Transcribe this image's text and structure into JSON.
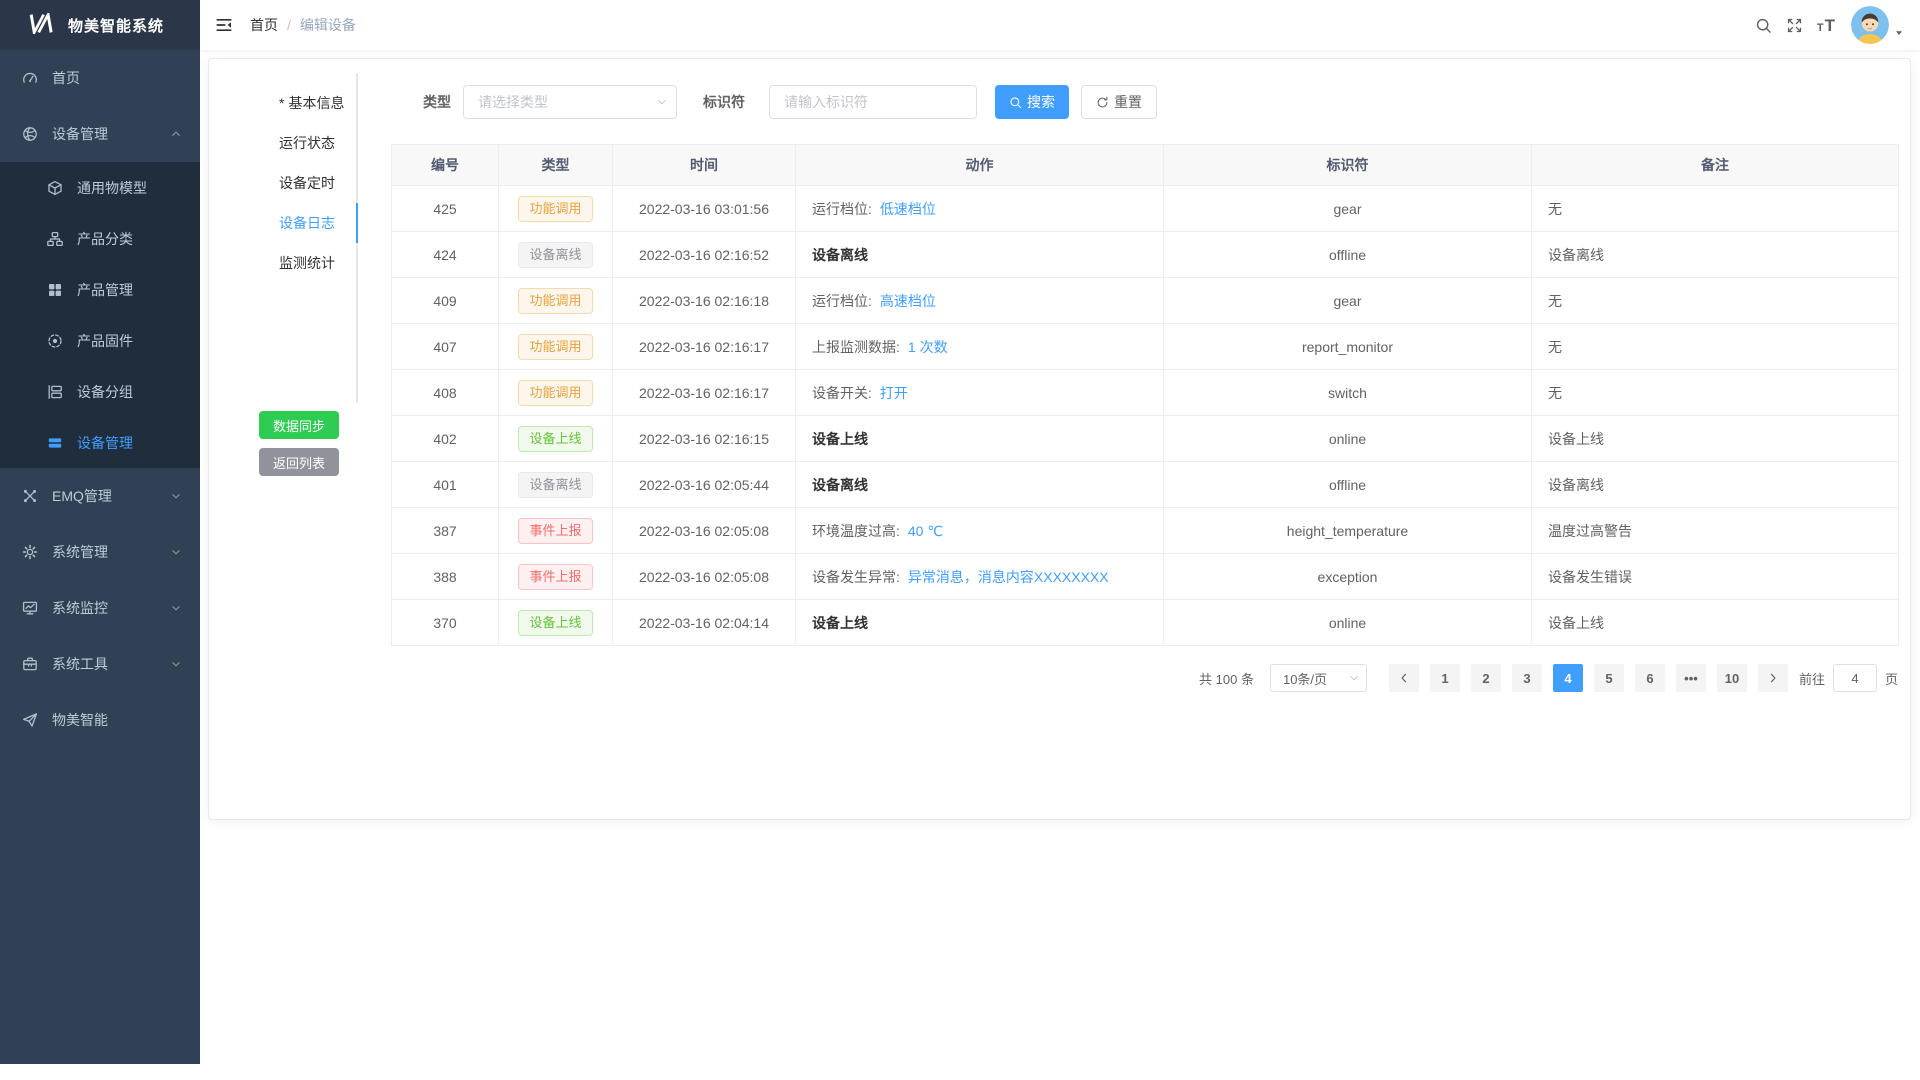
{
  "app": {
    "title": "物美智能系统"
  },
  "topbar": {
    "breadcrumb_home": "首页",
    "breadcrumb_current": "编辑设备"
  },
  "sidebar": {
    "items": [
      {
        "key": "home",
        "label": "首页",
        "icon": "dashboard-icon"
      },
      {
        "key": "device-management",
        "label": "设备管理",
        "icon": "sphere-icon",
        "chevron": "up",
        "children": [
          {
            "key": "thing-model",
            "label": "通用物模型",
            "icon": "cube-icon"
          },
          {
            "key": "product-category",
            "label": "产品分类",
            "icon": "sitemap-icon"
          },
          {
            "key": "product-management",
            "label": "产品管理",
            "icon": "grid-icon"
          },
          {
            "key": "product-firmware",
            "label": "产品固件",
            "icon": "firmware-icon"
          },
          {
            "key": "device-group",
            "label": "设备分组",
            "icon": "group-icon"
          },
          {
            "key": "device-list",
            "label": "设备管理",
            "icon": "bars-icon",
            "active": true
          }
        ]
      },
      {
        "key": "emq-management",
        "label": "EMQ管理",
        "icon": "emq-icon",
        "chevron": "down"
      },
      {
        "key": "system-management",
        "label": "系统管理",
        "icon": "gear-icon",
        "chevron": "down"
      },
      {
        "key": "system-monitor",
        "label": "系统监控",
        "icon": "monitor-icon",
        "chevron": "down"
      },
      {
        "key": "system-tools",
        "label": "系统工具",
        "icon": "toolbox-icon",
        "chevron": "down"
      },
      {
        "key": "wumei-smart",
        "label": "物美智能",
        "icon": "paper-plane-icon"
      }
    ]
  },
  "tabs": {
    "items": [
      {
        "key": "basic-info",
        "label": "基本信息",
        "required": true
      },
      {
        "key": "running-status",
        "label": "运行状态"
      },
      {
        "key": "device-timer",
        "label": "设备定时"
      },
      {
        "key": "device-log",
        "label": "设备日志",
        "active": true
      },
      {
        "key": "monitor-stats",
        "label": "监测统计"
      }
    ],
    "sync_button": "数据同步",
    "back_button": "返回列表"
  },
  "filters": {
    "type_label": "类型",
    "type_placeholder": "请选择类型",
    "identifier_label": "标识符",
    "identifier_placeholder": "请输入标识符",
    "search_button": "搜索",
    "reset_button": "重置"
  },
  "table": {
    "columns": [
      "编号",
      "类型",
      "时间",
      "动作",
      "标识符",
      "备注"
    ],
    "rows": [
      {
        "id": "425",
        "type": "功能调用",
        "type_color": "warning",
        "time": "2022-03-16 03:01:56",
        "action_label": "运行档位:",
        "action_link": "低速档位",
        "identifier": "gear",
        "remark": "无"
      },
      {
        "id": "424",
        "type": "设备离线",
        "type_color": "info",
        "time": "2022-03-16 02:16:52",
        "action_bold": "设备离线",
        "identifier": "offline",
        "remark": "设备离线"
      },
      {
        "id": "409",
        "type": "功能调用",
        "type_color": "warning",
        "time": "2022-03-16 02:16:18",
        "action_label": "运行档位:",
        "action_link": "高速档位",
        "identifier": "gear",
        "remark": "无"
      },
      {
        "id": "407",
        "type": "功能调用",
        "type_color": "warning",
        "time": "2022-03-16 02:16:17",
        "action_label": "上报监测数据:",
        "action_link": "1 次数",
        "identifier": "report_monitor",
        "remark": "无"
      },
      {
        "id": "408",
        "type": "功能调用",
        "type_color": "warning",
        "time": "2022-03-16 02:16:17",
        "action_label": "设备开关:",
        "action_link": "打开",
        "identifier": "switch",
        "remark": "无"
      },
      {
        "id": "402",
        "type": "设备上线",
        "type_color": "success",
        "time": "2022-03-16 02:16:15",
        "action_bold": "设备上线",
        "identifier": "online",
        "remark": "设备上线"
      },
      {
        "id": "401",
        "type": "设备离线",
        "type_color": "info",
        "time": "2022-03-16 02:05:44",
        "action_bold": "设备离线",
        "identifier": "offline",
        "remark": "设备离线"
      },
      {
        "id": "387",
        "type": "事件上报",
        "type_color": "danger",
        "time": "2022-03-16 02:05:08",
        "action_label": "环境温度过高:",
        "action_link": "40 ℃",
        "identifier": "height_temperature",
        "remark": "温度过高警告"
      },
      {
        "id": "388",
        "type": "事件上报",
        "type_color": "danger",
        "time": "2022-03-16 02:05:08",
        "action_label": "设备发生异常:",
        "action_link": "异常消息，消息内容XXXXXXXX",
        "identifier": "exception",
        "remark": "设备发生错误"
      },
      {
        "id": "370",
        "type": "设备上线",
        "type_color": "success",
        "time": "2022-03-16 02:04:14",
        "action_bold": "设备上线",
        "identifier": "online",
        "remark": "设备上线"
      }
    ]
  },
  "pagination": {
    "total_text": "共 100 条",
    "page_size": "10条/页",
    "pages": [
      "1",
      "2",
      "3",
      "4",
      "5",
      "6",
      "•••",
      "10"
    ],
    "active_page": "4",
    "goto_label": "前往",
    "goto_value": "4",
    "goto_suffix": "页"
  },
  "colors": {
    "accent": "#409eff",
    "sidebar_bg": "#304156",
    "submenu_bg": "#1f2d3d",
    "success_button": "#2ecc52",
    "info_button": "#909399",
    "tag_warning": "#e6a23c",
    "tag_info": "#909399",
    "tag_success": "#67c23a",
    "tag_danger": "#f56c6c"
  }
}
